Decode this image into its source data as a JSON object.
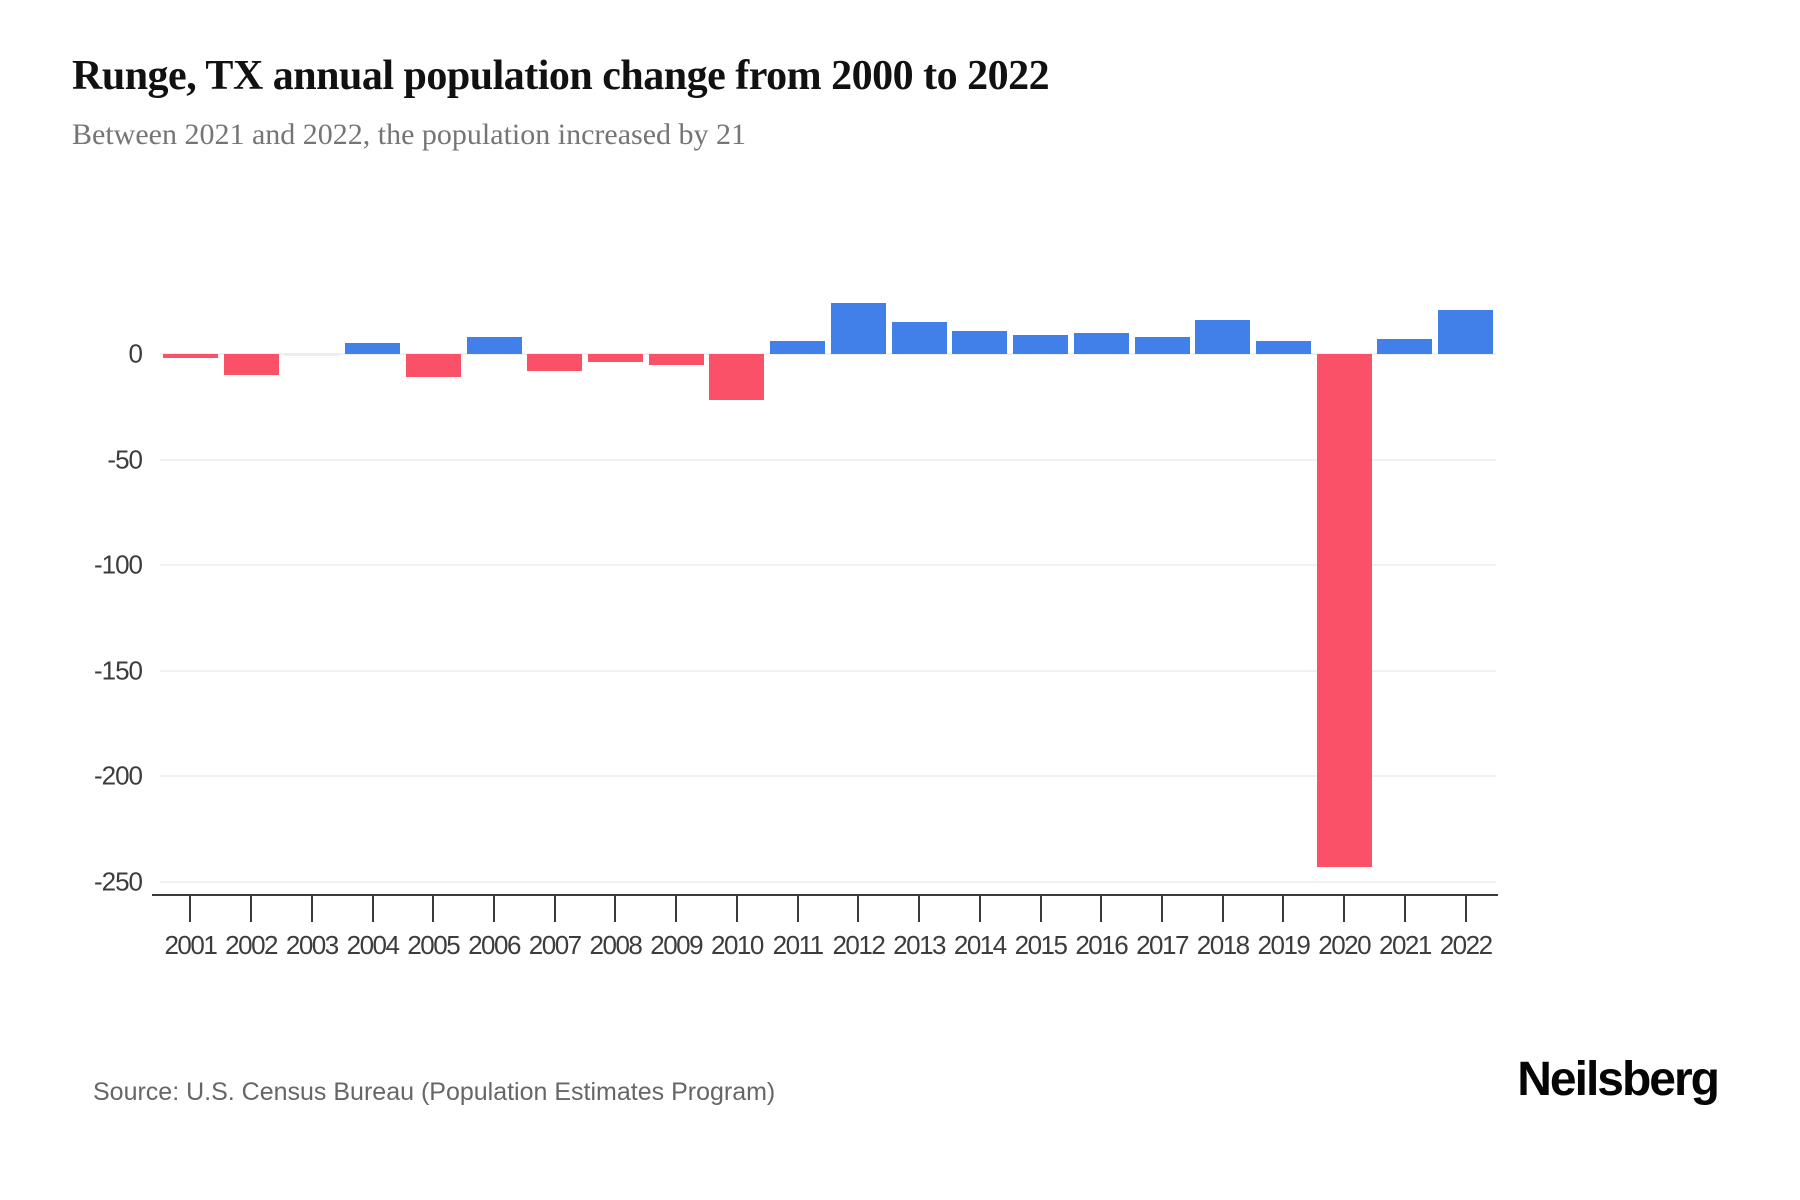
{
  "header": {
    "title": "Runge, TX annual population change from 2000 to 2022",
    "subtitle": "Between 2021 and 2022, the population increased by 21"
  },
  "footer": {
    "source": "Source: U.S. Census Bureau (Population Estimates Program)",
    "logo": "Neilsberg"
  },
  "chart_data": {
    "type": "bar",
    "title": "Runge, TX annual population change from 2000 to 2022",
    "subtitle": "Between 2021 and 2022, the population increased by 21",
    "xlabel": "",
    "ylabel": "",
    "categories": [
      "2001",
      "2002",
      "2003",
      "2004",
      "2005",
      "2006",
      "2007",
      "2008",
      "2009",
      "2010",
      "2011",
      "2012",
      "2013",
      "2014",
      "2015",
      "2016",
      "2017",
      "2018",
      "2019",
      "2020",
      "2021",
      "2022"
    ],
    "values": [
      -2,
      -10,
      0,
      5,
      -11,
      8,
      -8,
      -4,
      -5,
      -22,
      6,
      24,
      15,
      11,
      9,
      10,
      8,
      16,
      6,
      -243,
      7,
      21
    ],
    "yticks": [
      0,
      -50,
      -100,
      -150,
      -200,
      -250
    ],
    "ylim": [
      -250,
      30
    ],
    "grid": "horizontal",
    "legend": "none",
    "colors": {
      "positive": "#4080E8",
      "negative": "#FA5168",
      "zero": "#ededf0"
    }
  }
}
